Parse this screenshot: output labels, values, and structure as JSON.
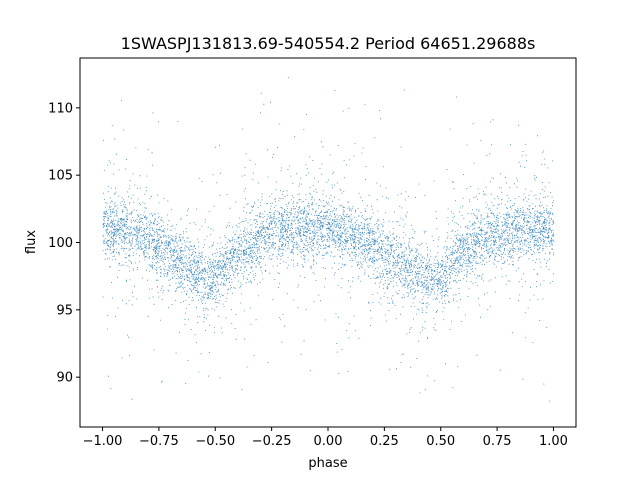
{
  "chart_data": {
    "type": "scatter",
    "title": "1SWASPJ131813.69-540554.2 Period 64651.29688s",
    "xlabel": "phase",
    "ylabel": "flux",
    "xlim": [
      -1.1,
      1.1
    ],
    "ylim": [
      86.3,
      113.7
    ],
    "x_ticks": [
      -1.0,
      -0.75,
      -0.5,
      -0.25,
      0.0,
      0.25,
      0.5,
      0.75,
      1.0
    ],
    "x_tick_labels": [
      "−1.00",
      "−0.75",
      "−0.50",
      "−0.25",
      "0.00",
      "0.25",
      "0.50",
      "0.75",
      "1.00"
    ],
    "y_ticks": [
      90,
      95,
      100,
      105,
      110
    ],
    "y_tick_labels": [
      "90",
      "95",
      "100",
      "105",
      "110"
    ],
    "grid": false,
    "legend": "none",
    "marker_color": "#1f77b4",
    "series": [
      {
        "points_x": [
          -1.0,
          -0.95,
          -0.9,
          -0.85,
          -0.8,
          -0.75,
          -0.7,
          -0.65,
          -0.6,
          -0.55,
          -0.52,
          -0.5,
          -0.45,
          -0.4,
          -0.35,
          -0.3,
          -0.25,
          -0.2,
          -0.15,
          -0.1,
          -0.05,
          0.0,
          0.05,
          0.1,
          0.15,
          0.2,
          0.25,
          0.3,
          0.35,
          0.4,
          0.45,
          0.48,
          0.5,
          0.55,
          0.6,
          0.65,
          0.7,
          0.75,
          0.8,
          0.85,
          0.9,
          0.95,
          1.0
        ],
        "points_y": [
          101.0,
          101.1,
          101.0,
          100.7,
          100.3,
          99.8,
          99.2,
          98.6,
          98.0,
          97.4,
          97.0,
          97.3,
          98.4,
          99.2,
          99.9,
          100.4,
          100.8,
          101.0,
          101.1,
          101.1,
          101.0,
          100.9,
          100.7,
          100.4,
          100.1,
          99.7,
          99.3,
          98.8,
          98.2,
          97.6,
          97.2,
          97.0,
          97.3,
          98.3,
          99.2,
          99.9,
          100.3,
          100.6,
          100.8,
          101.0,
          101.1,
          101.1,
          101.0
        ]
      }
    ]
  }
}
